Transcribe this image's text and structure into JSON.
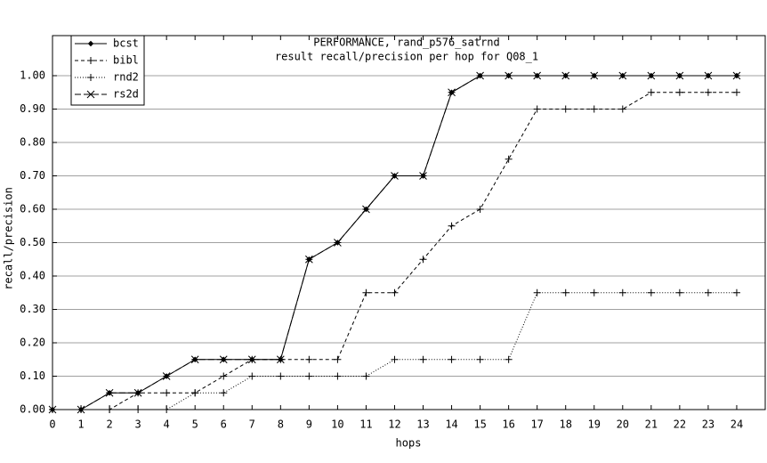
{
  "chart_data": {
    "type": "line",
    "title": "PERFORMANCE, rand_p576_satrnd",
    "subtitle": "result recall/precision per hop for Q08_1",
    "x_label": "hops",
    "y_label": "recall/precision",
    "x": [
      0,
      1,
      2,
      3,
      4,
      5,
      6,
      7,
      8,
      9,
      10,
      11,
      12,
      13,
      14,
      15,
      16,
      17,
      18,
      19,
      20,
      21,
      22,
      23,
      24
    ],
    "xlim": [
      0,
      25
    ],
    "xticks": [
      0,
      1,
      2,
      3,
      4,
      5,
      6,
      7,
      8,
      9,
      10,
      11,
      12,
      13,
      14,
      15,
      16,
      17,
      18,
      19,
      20,
      21,
      22,
      23,
      24
    ],
    "ylim": [
      0,
      1.12
    ],
    "yticks": [
      {
        "value": 0,
        "label": "0.00"
      },
      {
        "value": 0.1,
        "label": "0.10"
      },
      {
        "value": 0.2,
        "label": "0.20"
      },
      {
        "value": 0.3,
        "label": "0.30"
      },
      {
        "value": 0.4,
        "label": "0.40"
      },
      {
        "value": 0.5,
        "label": "0.50"
      },
      {
        "value": 0.6,
        "label": "0.60"
      },
      {
        "value": 0.7,
        "label": "0.70"
      },
      {
        "value": 0.8,
        "label": "0.80"
      },
      {
        "value": 0.9,
        "label": "0.90"
      },
      {
        "value": 1,
        "label": "1.00"
      }
    ],
    "grid": true,
    "legend": "top-left",
    "series": [
      {
        "name": "bcst",
        "color": "#000000",
        "dash": "solid",
        "marker": "diamond",
        "values": [
          0,
          0,
          0.05,
          0.05,
          0.1,
          0.15,
          0.15,
          0.15,
          0.15,
          0.45,
          0.5,
          0.6,
          0.7,
          0.7,
          0.95,
          1,
          1,
          1,
          1,
          1,
          1,
          1,
          1,
          1,
          1
        ]
      },
      {
        "name": "bibl",
        "color": "#000000",
        "dash": "dashed",
        "marker": "plus",
        "values": [
          0,
          0,
          0,
          0.05,
          0.05,
          0.05,
          0.1,
          0.15,
          0.15,
          0.15,
          0.15,
          0.35,
          0.35,
          0.45,
          0.55,
          0.6,
          0.75,
          0.9,
          0.9,
          0.9,
          0.9,
          0.95,
          0.95,
          0.95,
          0.95
        ]
      },
      {
        "name": "rnd2",
        "color": "#000000",
        "dash": "dotted",
        "marker": "plus",
        "values": [
          0,
          0,
          0,
          0,
          0,
          0.05,
          0.05,
          0.1,
          0.1,
          0.1,
          0.1,
          0.1,
          0.15,
          0.15,
          0.15,
          0.15,
          0.15,
          0.35,
          0.35,
          0.35,
          0.35,
          0.35,
          0.35,
          0.35,
          0.35
        ]
      },
      {
        "name": "rs2d",
        "color": "#000000",
        "dash": "longdash",
        "marker": "star",
        "values": [
          0,
          0,
          0.05,
          0.05,
          0.1,
          0.15,
          0.15,
          0.15,
          0.15,
          0.45,
          0.5,
          0.6,
          0.7,
          0.7,
          0.95,
          1,
          1,
          1,
          1,
          1,
          1,
          1,
          1,
          1,
          1
        ]
      }
    ]
  }
}
